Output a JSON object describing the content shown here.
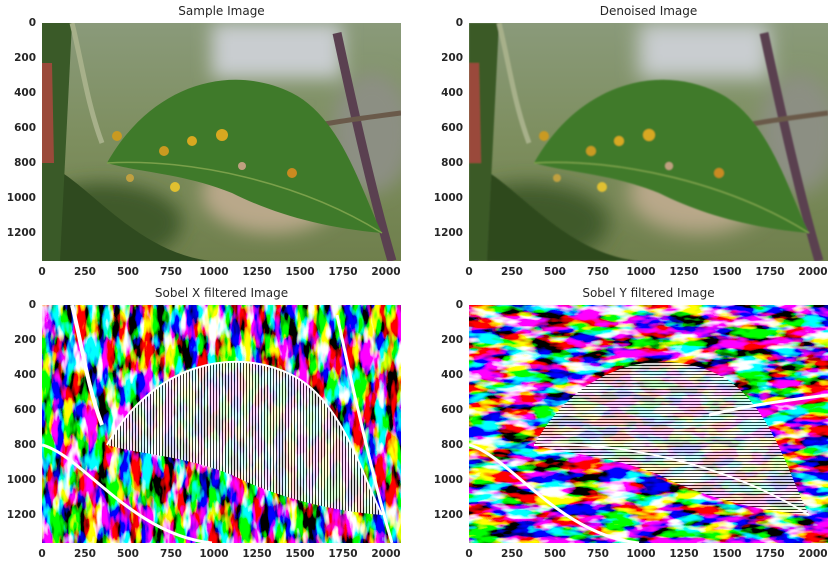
{
  "panels": [
    {
      "title": "Sample Image",
      "kind": "photo"
    },
    {
      "title": "Denoised Image",
      "kind": "photo"
    },
    {
      "title": "Sobel X filtered Image",
      "kind": "sobel-x"
    },
    {
      "title": "Sobel Y filtered Image",
      "kind": "sobel-y"
    }
  ],
  "axes": {
    "x_ticks": [
      "0",
      "250",
      "500",
      "750",
      "1000",
      "1250",
      "1500",
      "1750",
      "2000"
    ],
    "y_ticks": [
      "0",
      "200",
      "400",
      "600",
      "800",
      "1000",
      "1200"
    ]
  }
}
